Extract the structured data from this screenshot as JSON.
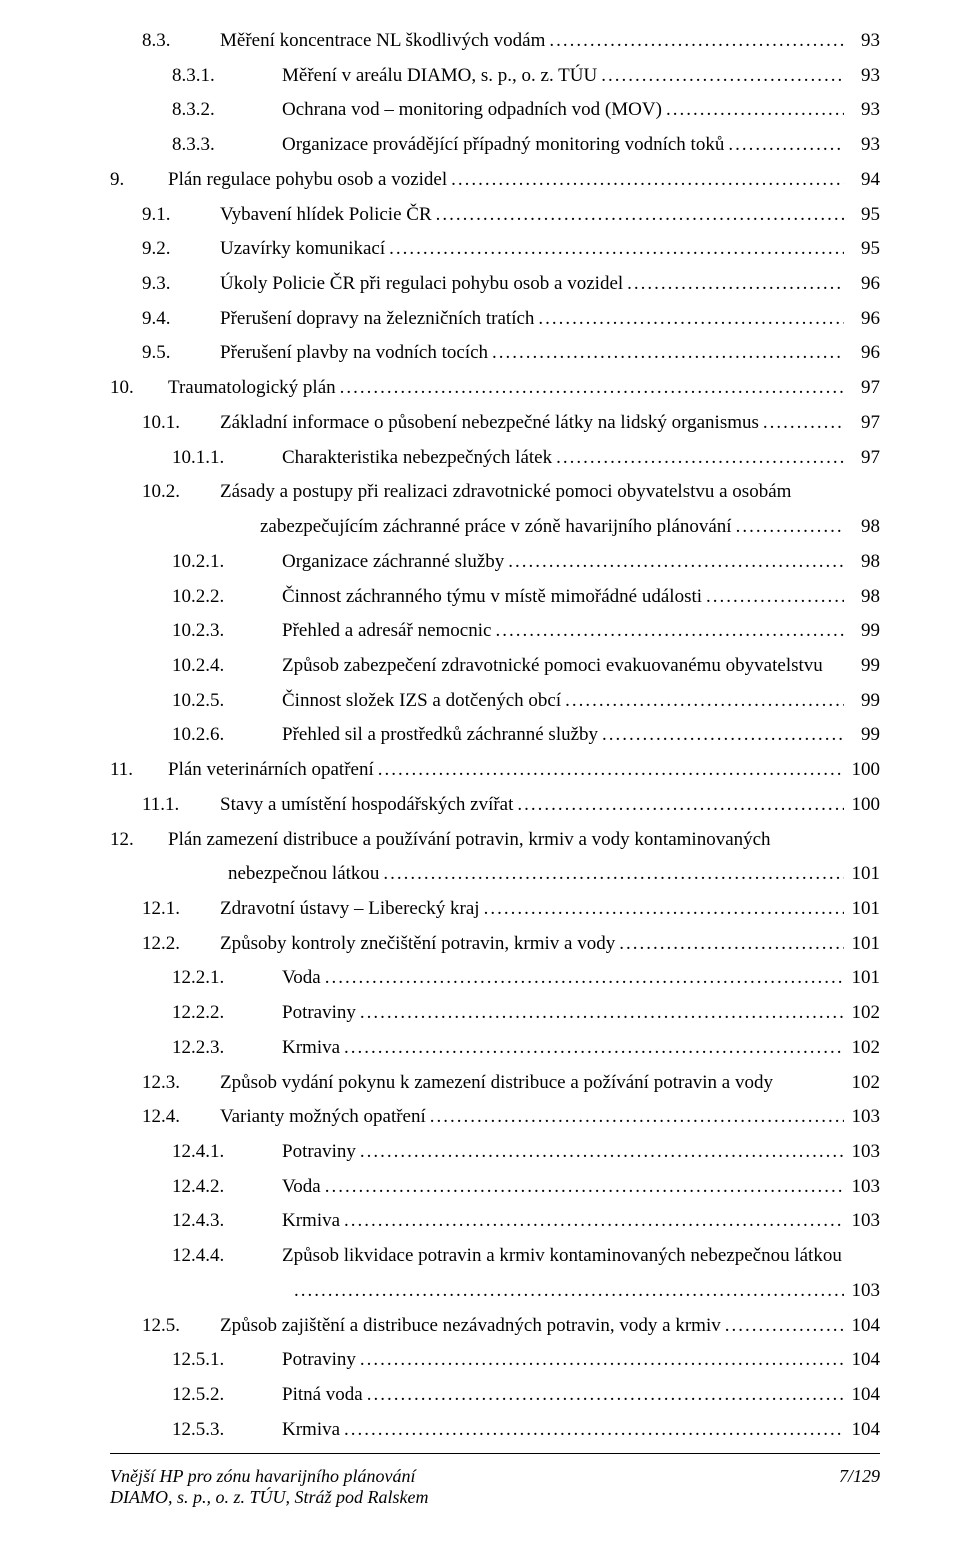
{
  "toc": {
    "entries": [
      {
        "lvl": 1,
        "num": "8.3.",
        "title": "Měření koncentrace NL škodlivých vodám",
        "page": "93"
      },
      {
        "lvl": 2,
        "num": "8.3.1.",
        "title": "Měření v areálu DIAMO, s. p., o. z. TÚU",
        "page": "93"
      },
      {
        "lvl": 2,
        "num": "8.3.2.",
        "title": "Ochrana vod – monitoring odpadních vod (MOV)",
        "page": "93"
      },
      {
        "lvl": 2,
        "num": "8.3.3.",
        "title": "Organizace provádějící případný monitoring vodních toků",
        "page": "93"
      },
      {
        "lvl": 0,
        "num": "9.",
        "title": "Plán regulace pohybu osob a vozidel",
        "page": "94"
      },
      {
        "lvl": 1,
        "num": "9.1.",
        "title": "Vybavení hlídek Policie ČR",
        "page": "95"
      },
      {
        "lvl": 1,
        "num": "9.2.",
        "title": "Uzavírky komunikací",
        "page": "95"
      },
      {
        "lvl": 1,
        "num": "9.3.",
        "title": "Úkoly Policie ČR při regulaci pohybu osob a vozidel",
        "page": "96"
      },
      {
        "lvl": 1,
        "num": "9.4.",
        "title": "Přerušení dopravy na železničních tratích",
        "page": "96"
      },
      {
        "lvl": 1,
        "num": "9.5.",
        "title": "Přerušení plavby na vodních tocích",
        "page": "96"
      },
      {
        "lvl": 0,
        "num": "10.",
        "title": "Traumatologický plán",
        "page": "97"
      },
      {
        "lvl": 1,
        "num": "10.1.",
        "title": "Základní informace o působení nebezpečné látky na lidský organismus",
        "page": "97"
      },
      {
        "lvl": 2,
        "num": "10.1.1.",
        "title": "Charakteristika nebezpečných látek",
        "page": "97"
      },
      {
        "lvl": 1,
        "num": "10.2.",
        "title": "Zásady a postupy při realizaci zdravotnické pomoci obyvatelstvu a osobám",
        "title2": "zabezpečujícím záchranné práce v zóně havarijního plánování",
        "page": "98",
        "multi": true
      },
      {
        "lvl": 2,
        "num": "10.2.1.",
        "title": "Organizace záchranné služby",
        "page": "98"
      },
      {
        "lvl": 2,
        "num": "10.2.2.",
        "title": "Činnost záchranného týmu v místě mimořádné události",
        "page": "98"
      },
      {
        "lvl": 2,
        "num": "10.2.3.",
        "title": "Přehled a adresář nemocnic",
        "page": "99"
      },
      {
        "lvl": 2,
        "num": "10.2.4.",
        "title": "Způsob zabezpečení zdravotnické pomoci evakuovanému obyvatelstvu",
        "page": "99",
        "nodots": true
      },
      {
        "lvl": 2,
        "num": "10.2.5.",
        "title": "Činnost složek IZS a dotčených obcí",
        "page": "99"
      },
      {
        "lvl": 2,
        "num": "10.2.6.",
        "title": "Přehled sil a prostředků záchranné služby",
        "page": "99"
      },
      {
        "lvl": 0,
        "num": "11.",
        "title": "Plán veterinárních opatření",
        "page": "100"
      },
      {
        "lvl": 1,
        "num": "11.1.",
        "title": "Stavy a umístění hospodářských zvířat",
        "page": "100"
      },
      {
        "lvl": 0,
        "num": "12.",
        "title": "Plán zamezení distribuce a používání potravin, krmiv a vody kontaminovaných",
        "title2": "nebezpečnou látkou",
        "page": "101",
        "multi": true
      },
      {
        "lvl": 1,
        "num": "12.1.",
        "title": "Zdravotní ústavy – Liberecký kraj",
        "page": "101"
      },
      {
        "lvl": 1,
        "num": "12.2.",
        "title": "Způsoby kontroly znečištění potravin, krmiv a vody",
        "page": "101"
      },
      {
        "lvl": 2,
        "num": "12.2.1.",
        "title": "Voda",
        "page": "101"
      },
      {
        "lvl": 2,
        "num": "12.2.2.",
        "title": "Potraviny",
        "page": "102"
      },
      {
        "lvl": 2,
        "num": "12.2.3.",
        "title": "Krmiva",
        "page": "102"
      },
      {
        "lvl": 1,
        "num": "12.3.",
        "title": "Způsob vydání pokynu k zamezení distribuce a požívání potravin a vody",
        "page": "102",
        "nodots": true
      },
      {
        "lvl": 1,
        "num": "12.4.",
        "title": "Varianty možných opatření",
        "page": "103"
      },
      {
        "lvl": 2,
        "num": "12.4.1.",
        "title": "Potraviny",
        "page": "103"
      },
      {
        "lvl": 2,
        "num": "12.4.2.",
        "title": "Voda",
        "page": "103"
      },
      {
        "lvl": 2,
        "num": "12.4.3.",
        "title": "Krmiva",
        "page": "103"
      },
      {
        "lvl": 2,
        "num": "12.4.4.",
        "title": "Způsob likvidace potravin a krmiv kontaminovaných nebezpečnou látkou",
        "title2": "",
        "page": "103",
        "multi": true,
        "rightdots": true
      },
      {
        "lvl": 1,
        "num": "12.5.",
        "title": "Způsob zajištění a distribuce nezávadných potravin, vody a krmiv",
        "page": "104"
      },
      {
        "lvl": 2,
        "num": "12.5.1.",
        "title": "Potraviny",
        "page": "104"
      },
      {
        "lvl": 2,
        "num": "12.5.2.",
        "title": "Pitná voda",
        "page": "104"
      },
      {
        "lvl": 2,
        "num": "12.5.3.",
        "title": "Krmiva",
        "page": "104"
      }
    ]
  },
  "footer": {
    "left1": "Vnější HP pro zónu havarijního plánování",
    "left2": "DIAMO, s. p., o. z. TÚU, Stráž pod Ralskem",
    "right": "7/129"
  }
}
